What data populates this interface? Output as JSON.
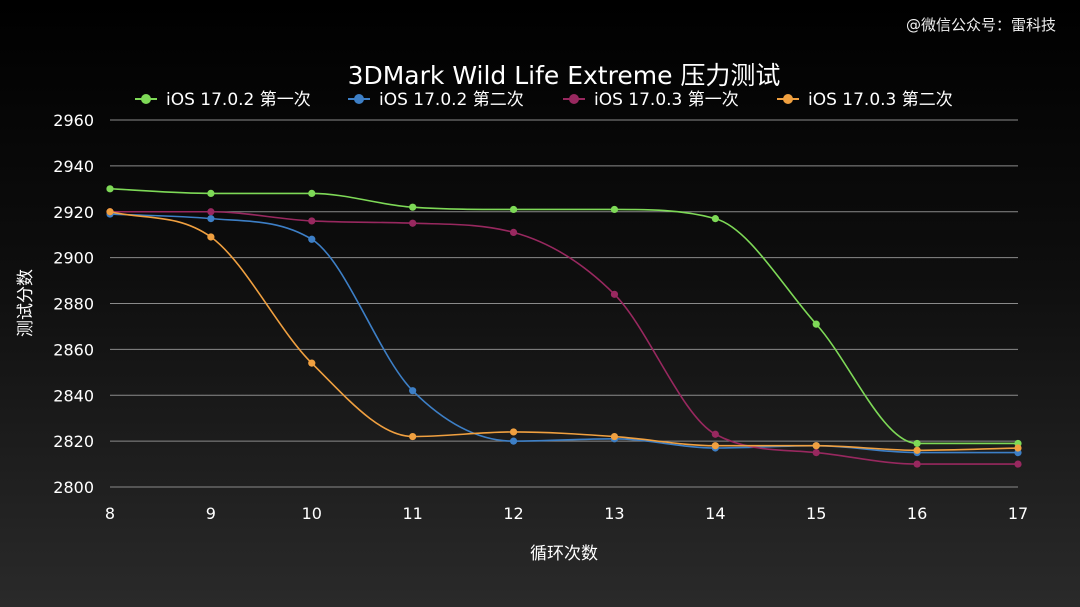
{
  "watermark": "@微信公众号：雷科技",
  "chart_data": {
    "type": "line",
    "title": "3DMark Wild Life Extreme 压力测试",
    "xlabel": "循环次数",
    "ylabel": "测试分数",
    "x": [
      8,
      9,
      10,
      11,
      12,
      13,
      14,
      15,
      16,
      17
    ],
    "xlim": [
      8,
      17
    ],
    "ylim": [
      2800,
      2960
    ],
    "yticks": [
      2800,
      2820,
      2840,
      2860,
      2880,
      2900,
      2920,
      2940,
      2960
    ],
    "grid": "horizontal",
    "legend_position": "top",
    "series": [
      {
        "name": "iOS 17.0.2 第一次",
        "color": "#7ed957",
        "values": [
          2930,
          2928,
          2928,
          2922,
          2921,
          2921,
          2917,
          2871,
          2819,
          2819
        ]
      },
      {
        "name": "iOS 17.0.2 第二次",
        "color": "#3d7fc6",
        "values": [
          2919,
          2917,
          2908,
          2842,
          2820,
          2821,
          2817,
          2818,
          2815,
          2815
        ]
      },
      {
        "name": "iOS 17.0.3 第一次",
        "color": "#98285f",
        "values": [
          2920,
          2920,
          2916,
          2915,
          2911,
          2884,
          2823,
          2815,
          2810,
          2810
        ]
      },
      {
        "name": "iOS 17.0.3 第二次",
        "color": "#f0a040",
        "values": [
          2920,
          2909,
          2854,
          2822,
          2824,
          2822,
          2818,
          2818,
          2816,
          2817
        ]
      }
    ]
  }
}
